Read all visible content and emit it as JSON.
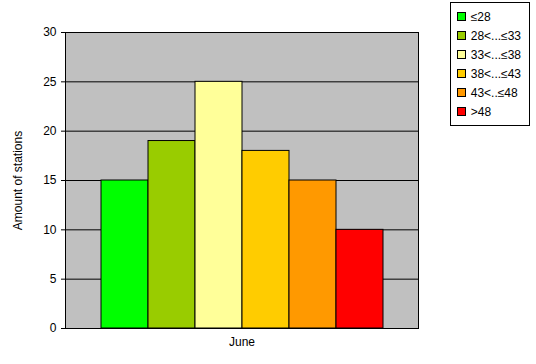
{
  "chart_data": {
    "type": "bar",
    "categories": [
      "June"
    ],
    "series": [
      {
        "name": "≤28",
        "color": "#00ff00",
        "values": [
          15
        ]
      },
      {
        "name": "28<...≤33",
        "color": "#99cc00",
        "values": [
          19
        ]
      },
      {
        "name": "33<...≤38",
        "color": "#ffff99",
        "values": [
          25
        ]
      },
      {
        "name": "38<...≤43",
        "color": "#ffcc00",
        "values": [
          18
        ]
      },
      {
        "name": "43<..≤48",
        "color": "#ff9900",
        "values": [
          15
        ]
      },
      {
        "name": ">48",
        "color": "#ff0000",
        "values": [
          10
        ]
      }
    ],
    "ylabel": "Amount of stations",
    "ylim": [
      0,
      30
    ],
    "yticks": [
      0,
      5,
      10,
      15,
      20,
      25,
      30
    ],
    "grid": true,
    "legend": "top-right"
  }
}
